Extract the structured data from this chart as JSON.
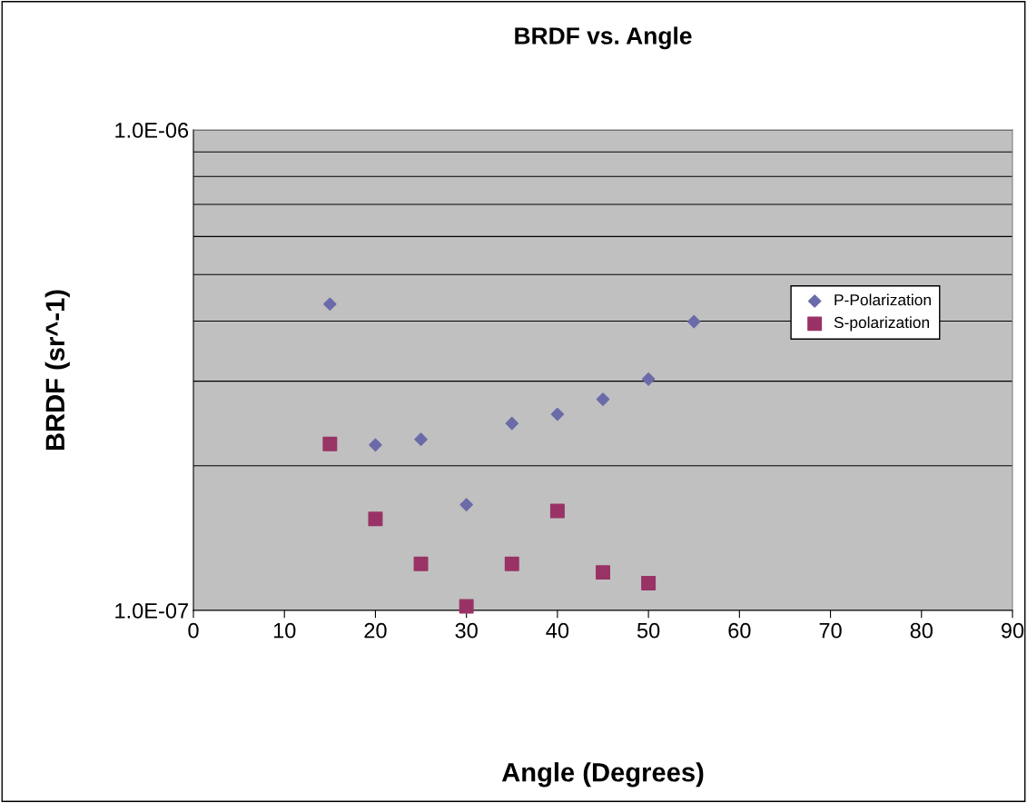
{
  "chart_data": {
    "type": "scatter",
    "title": "BRDF vs. Angle",
    "xlabel": "Angle (Degrees)",
    "ylabel": "BRDF (sr^-1)",
    "x": [
      15,
      20,
      25,
      30,
      35,
      40,
      45,
      50,
      55
    ],
    "series": [
      {
        "name": "P-Polarization",
        "color": "#6b6baa",
        "marker": "diamond",
        "values": [
          4.34e-07,
          2.21e-07,
          2.27e-07,
          1.66e-07,
          2.45e-07,
          2.56e-07,
          2.75e-07,
          3.03e-07,
          3.99e-07
        ]
      },
      {
        "name": "S-polarization",
        "color": "#993366",
        "marker": "square",
        "values": [
          2.22e-07,
          1.55e-07,
          1.25e-07,
          1.02e-07,
          1.25e-07,
          1.61e-07,
          1.2e-07,
          1.14e-07,
          null
        ]
      }
    ],
    "log": "y",
    "xlim": [
      0,
      90
    ],
    "xticks": [
      0,
      10,
      20,
      30,
      40,
      50,
      60,
      70,
      80,
      90
    ],
    "ylim": [
      1e-07,
      1e-06
    ],
    "yticks": [
      {
        "value": 1e-07,
        "label": "1.0E-07"
      },
      {
        "value": 2e-07,
        "label": null
      },
      {
        "value": 3e-07,
        "label": null
      },
      {
        "value": 4e-07,
        "label": null
      },
      {
        "value": 5e-07,
        "label": null
      },
      {
        "value": 6e-07,
        "label": null
      },
      {
        "value": 7e-07,
        "label": null
      },
      {
        "value": 8e-07,
        "label": null
      },
      {
        "value": 9e-07,
        "label": null
      },
      {
        "value": 1e-06,
        "label": "1.0E-06"
      }
    ],
    "grid": "y",
    "legend": "right"
  }
}
